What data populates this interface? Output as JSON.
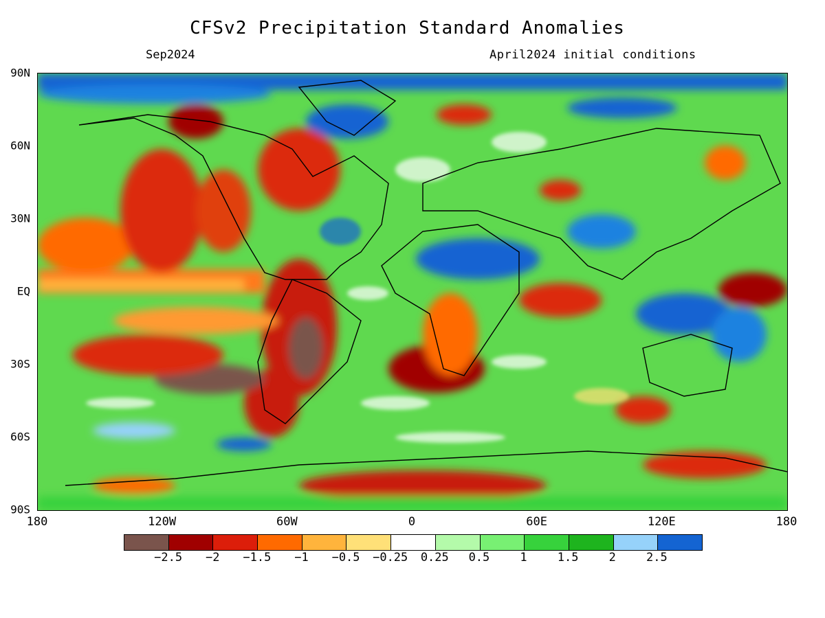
{
  "title": "CFSv2 Precipitation Standard Anomalies",
  "subtitle_left": "Sep2024",
  "subtitle_right": "April2024 initial conditions",
  "lat_ticks": [
    {
      "label": "90N",
      "value": 90
    },
    {
      "label": "60N",
      "value": 60
    },
    {
      "label": "30N",
      "value": 30
    },
    {
      "label": "EQ",
      "value": 0
    },
    {
      "label": "30S",
      "value": -30
    },
    {
      "label": "60S",
      "value": -60
    },
    {
      "label": "90S",
      "value": -90
    }
  ],
  "lon_ticks": [
    {
      "label": "180",
      "value": -180
    },
    {
      "label": "120W",
      "value": -120
    },
    {
      "label": "60W",
      "value": -60
    },
    {
      "label": "0",
      "value": 0
    },
    {
      "label": "60E",
      "value": 60
    },
    {
      "label": "120E",
      "value": 120
    },
    {
      "label": "180",
      "value": 180
    }
  ],
  "colorbar": {
    "colors": [
      "#7a544c",
      "#a00000",
      "#dc1e0a",
      "#ff6a00",
      "#ffb43c",
      "#ffe078",
      "#ffffff",
      "#b4faaa",
      "#78f073",
      "#37d23c",
      "#1eb41e",
      "#96d2fa",
      "#1464d2"
    ],
    "labels": [
      "−2.5",
      "−2",
      "−1.5",
      "−1",
      "−0.5",
      "−0.25",
      "0.25",
      "0.5",
      "1",
      "1.5",
      "2",
      "2.5"
    ]
  }
}
